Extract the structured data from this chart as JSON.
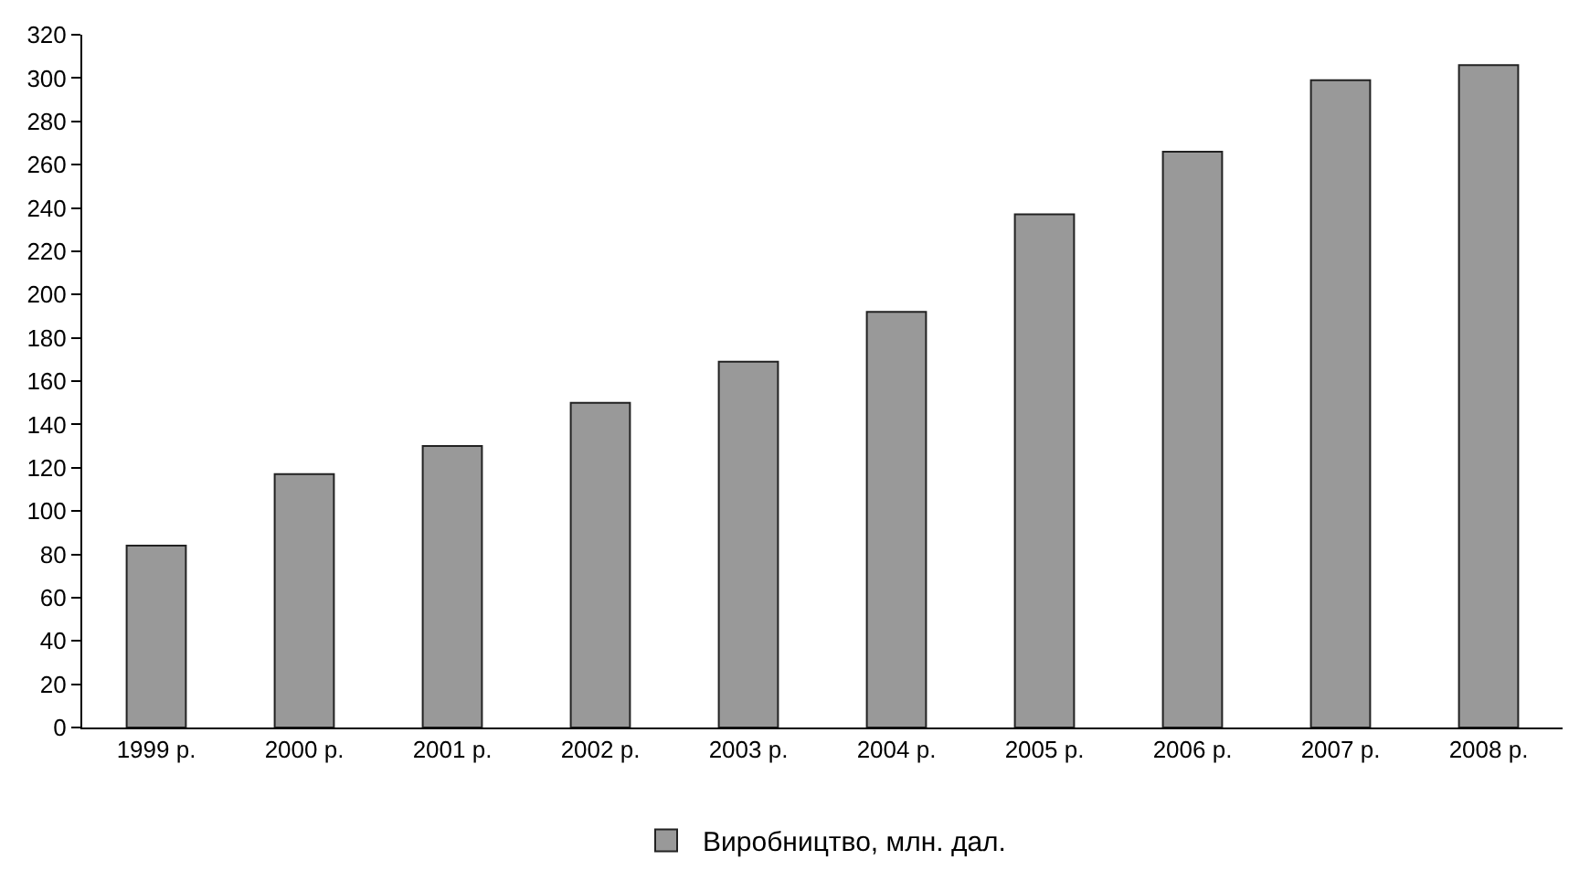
{
  "chart_data": {
    "type": "bar",
    "categories": [
      "1999 р.",
      "2000 р.",
      "2001 р.",
      "2002 р.",
      "2003 р.",
      "2004 р.",
      "2005 р.",
      "2006 р.",
      "2007 р.",
      "2008 р."
    ],
    "series": [
      {
        "name": "Виробництво, млн. дал.",
        "color": "#999999",
        "values": [
          84,
          117,
          130,
          150,
          169,
          192,
          237,
          266,
          299,
          306
        ]
      }
    ],
    "ylim": [
      0,
      320
    ],
    "yticks": [
      0,
      20,
      40,
      60,
      80,
      100,
      120,
      140,
      160,
      180,
      200,
      220,
      240,
      260,
      280,
      300,
      320
    ],
    "grid": false,
    "legend": "bottom"
  }
}
